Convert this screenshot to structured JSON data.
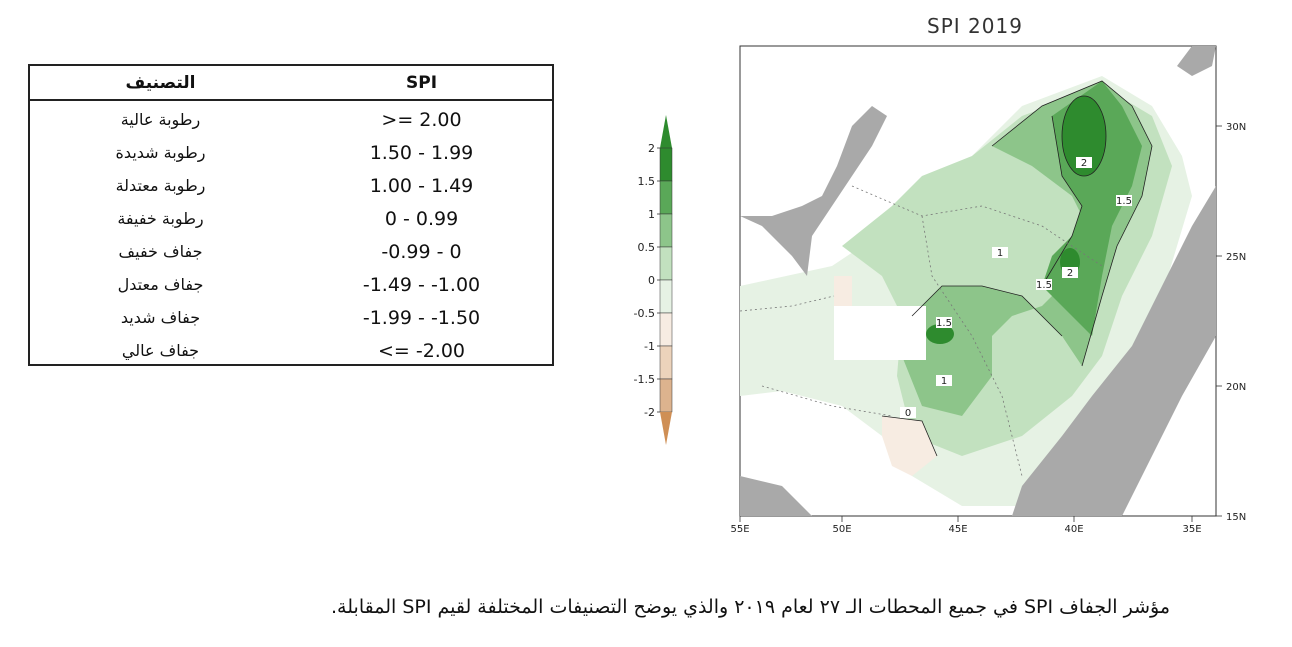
{
  "table": {
    "header": {
      "spi": "SPI",
      "classification": "التصنيف"
    },
    "rows": [
      {
        "spi": ">= 2.00",
        "class": "رطوبة عالية"
      },
      {
        "spi": "1.50 - 1.99",
        "class": "رطوبة شديدة"
      },
      {
        "spi": "1.00 - 1.49",
        "class": "رطوبة معتدلة"
      },
      {
        "spi": "0 - 0.99",
        "class": "رطوبة خفيفة"
      },
      {
        "spi": "-0.99 - 0",
        "class": "جفاف خفيف"
      },
      {
        "spi": "-1.49 - -1.00",
        "class": "جفاف معتدل"
      },
      {
        "spi": "-1.99 - -1.50",
        "class": "جفاف شديد"
      },
      {
        "spi": "<= -2.00",
        "class": "جفاف عالي"
      }
    ]
  },
  "colorbar": {
    "ticks": [
      "2",
      "1.5",
      "1",
      "0.5",
      "0",
      "-0.5",
      "-1",
      "-1.5",
      "-2"
    ],
    "colors": [
      "#2e8b2e",
      "#5aa858",
      "#8dc58a",
      "#c2e1bf",
      "#e6f2e4",
      "#f7ece2",
      "#ecd3bb",
      "#ddb38e",
      "#cf8f55"
    ]
  },
  "map": {
    "title": "SPI 2019",
    "lat_labels": [
      "30N",
      "25N",
      "20N",
      "15N"
    ],
    "lon_labels": [
      "35E",
      "40E",
      "45E",
      "50E",
      "55E"
    ],
    "contour_labels": [
      "2",
      "1.5",
      "1",
      "2",
      "1.5",
      "1.5",
      "1",
      "0"
    ]
  },
  "caption": "مؤشر الجفاف SPI في جميع المحطات الـ ٢٧ لعام ٢٠١٩ والذي يوضح التصنيفات المختلفة لقيم SPI المقابلة."
}
